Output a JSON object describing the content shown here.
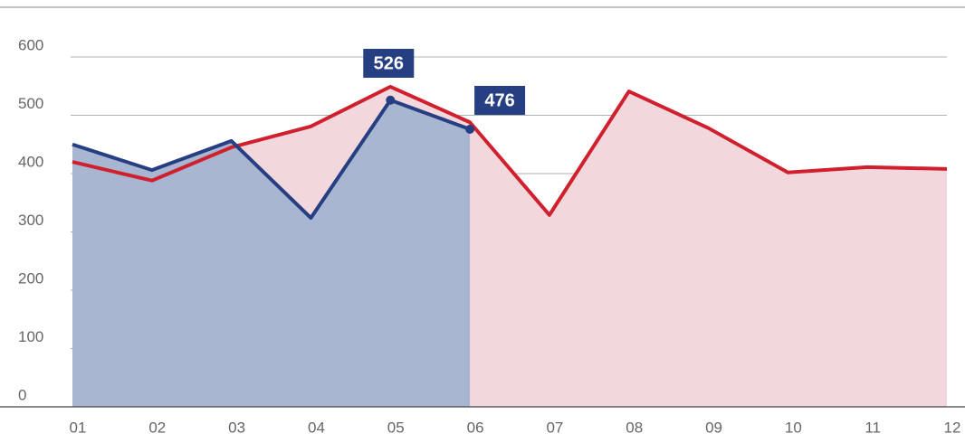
{
  "chart_data": {
    "type": "line",
    "categories": [
      "01",
      "02",
      "03",
      "04",
      "05",
      "06",
      "07",
      "08",
      "09",
      "10",
      "11",
      "12"
    ],
    "series": [
      {
        "color": "#d0202e",
        "fill": "#f2d7dc",
        "values": [
          420,
          388,
          445,
          481,
          549,
          488,
          329,
          541,
          478,
          402,
          411,
          408
        ]
      },
      {
        "color": "#263f82",
        "fill": "#a8b6d1",
        "values": [
          450,
          406,
          456,
          324,
          526,
          476,
          null,
          null,
          null,
          null,
          null,
          null
        ]
      }
    ],
    "ylim": [
      0,
      600
    ],
    "yticks": [
      0,
      100,
      200,
      300,
      400,
      500,
      600
    ],
    "grid": true
  }
}
